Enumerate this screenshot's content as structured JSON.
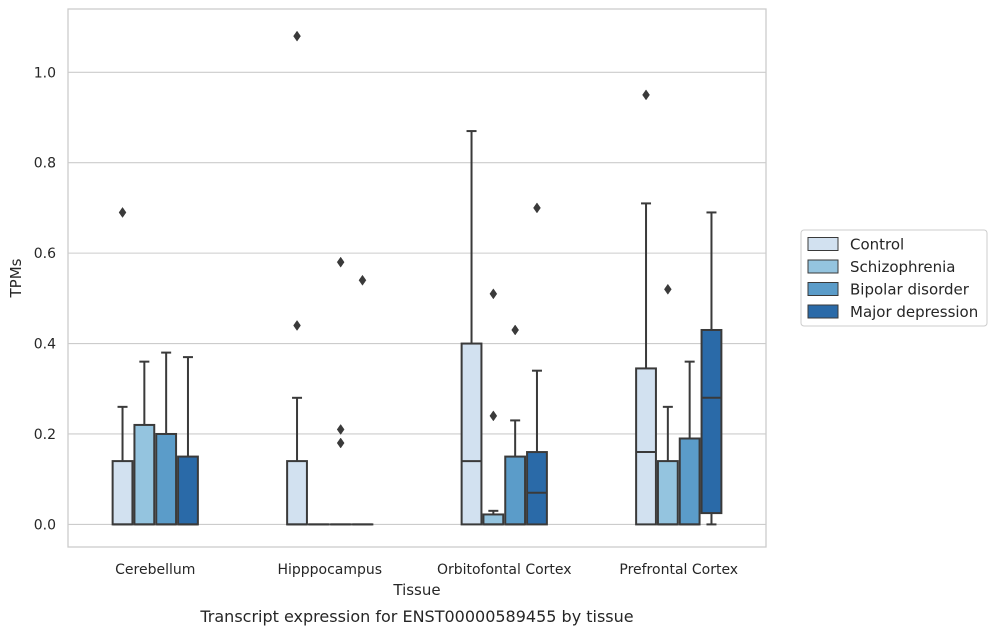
{
  "chart_data": {
    "type": "boxplot",
    "title": "",
    "caption": "Transcript expression for ENST00000589455 by tissue",
    "xlabel": "Tissue",
    "ylabel": "TPMs",
    "ylim": [
      -0.05,
      1.14
    ],
    "yticks": [
      0.0,
      0.2,
      0.4,
      0.6,
      0.8,
      1.0
    ],
    "ytick_labels": [
      "0.0",
      "0.2",
      "0.4",
      "0.6",
      "0.8",
      "1.0"
    ],
    "grid": "horizontal",
    "legend_position": "right",
    "categories": [
      "Cerebellum",
      "Hipppocampus",
      "Orbitofontal Cortex",
      "Prefrontal Cortex"
    ],
    "series": [
      {
        "name": "Control",
        "color": "#d2e1f0",
        "boxes": [
          {
            "whisker_low": 0.0,
            "q1": 0.0,
            "median": 0.0,
            "q3": 0.14,
            "whisker_high": 0.26,
            "outliers": [
              0.69
            ]
          },
          {
            "whisker_low": 0.0,
            "q1": 0.0,
            "median": 0.0,
            "q3": 0.14,
            "whisker_high": 0.28,
            "outliers": [
              0.44,
              1.08
            ]
          },
          {
            "whisker_low": 0.0,
            "q1": 0.0,
            "median": 0.14,
            "q3": 0.4,
            "whisker_high": 0.87,
            "outliers": []
          },
          {
            "whisker_low": 0.0,
            "q1": 0.0,
            "median": 0.16,
            "q3": 0.345,
            "whisker_high": 0.71,
            "outliers": [
              0.95
            ]
          }
        ]
      },
      {
        "name": "Schizophrenia",
        "color": "#94c4df",
        "boxes": [
          {
            "whisker_low": 0.0,
            "q1": 0.0,
            "median": 0.0,
            "q3": 0.22,
            "whisker_high": 0.36,
            "outliers": []
          },
          {
            "whisker_low": 0.0,
            "q1": 0.0,
            "median": 0.0,
            "q3": 0.0,
            "whisker_high": 0.0,
            "outliers": []
          },
          {
            "whisker_low": 0.0,
            "q1": 0.0,
            "median": 0.0,
            "q3": 0.022,
            "whisker_high": 0.03,
            "outliers": [
              0.24,
              0.51
            ]
          },
          {
            "whisker_low": 0.0,
            "q1": 0.0,
            "median": 0.0,
            "q3": 0.14,
            "whisker_high": 0.26,
            "outliers": [
              0.52
            ]
          }
        ]
      },
      {
        "name": "Bipolar disorder",
        "color": "#5b9cc9",
        "boxes": [
          {
            "whisker_low": 0.0,
            "q1": 0.0,
            "median": 0.0,
            "q3": 0.2,
            "whisker_high": 0.38,
            "outliers": []
          },
          {
            "whisker_low": 0.0,
            "q1": 0.0,
            "median": 0.0,
            "q3": 0.0,
            "whisker_high": 0.0,
            "outliers": [
              0.18,
              0.21,
              0.58
            ]
          },
          {
            "whisker_low": 0.0,
            "q1": 0.0,
            "median": 0.0,
            "q3": 0.15,
            "whisker_high": 0.23,
            "outliers": [
              0.43
            ]
          },
          {
            "whisker_low": 0.0,
            "q1": 0.0,
            "median": 0.0,
            "q3": 0.19,
            "whisker_high": 0.36,
            "outliers": []
          }
        ]
      },
      {
        "name": "Major depression",
        "color": "#2a6aa8",
        "boxes": [
          {
            "whisker_low": 0.0,
            "q1": 0.0,
            "median": 0.0,
            "q3": 0.15,
            "whisker_high": 0.37,
            "outliers": []
          },
          {
            "whisker_low": 0.0,
            "q1": 0.0,
            "median": 0.0,
            "q3": 0.0,
            "whisker_high": 0.0,
            "outliers": [
              0.54
            ]
          },
          {
            "whisker_low": 0.0,
            "q1": 0.0,
            "median": 0.07,
            "q3": 0.16,
            "whisker_high": 0.34,
            "outliers": [
              0.7
            ]
          },
          {
            "whisker_low": 0.0,
            "q1": 0.025,
            "median": 0.28,
            "q3": 0.43,
            "whisker_high": 0.69,
            "outliers": []
          }
        ]
      }
    ]
  },
  "colors": {
    "edge": "#3a3a3a",
    "grid": "#cccccc",
    "spine": "#cccccc"
  }
}
